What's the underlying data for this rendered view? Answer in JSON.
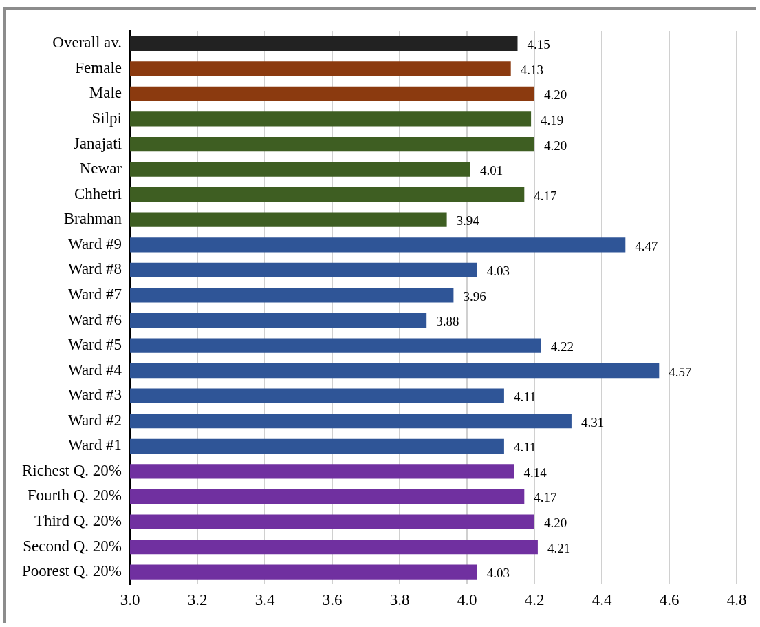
{
  "chart_data": {
    "type": "bar",
    "orientation": "horizontal",
    "categories": [
      "Overall av.",
      "Female",
      "Male",
      "Silpi",
      "Janajati",
      "Newar",
      "Chhetri",
      "Brahman",
      "Ward #9",
      "Ward #8",
      "Ward #7",
      "Ward #6",
      "Ward #5",
      "Ward #4",
      "Ward #3",
      "Ward #2",
      "Ward #1",
      "Richest Q. 20%",
      "Fourth Q. 20%",
      "Third Q. 20%",
      "Second Q. 20%",
      "Poorest Q. 20%"
    ],
    "values": [
      4.15,
      4.13,
      4.2,
      4.19,
      4.2,
      4.01,
      4.17,
      3.94,
      4.47,
      4.03,
      3.96,
      3.88,
      4.22,
      4.57,
      4.11,
      4.31,
      4.11,
      4.14,
      4.17,
      4.2,
      4.21,
      4.03
    ],
    "value_labels": [
      "4.15",
      "4.13",
      "4.20",
      "4.19",
      "4.20",
      "4.01",
      "4.17",
      "3.94",
      "4.47",
      "4.03",
      "3.96",
      "3.88",
      "4.22",
      "4.57",
      "4.11",
      "4.31",
      "4.11",
      "4.14",
      "4.17",
      "4.20",
      "4.21",
      "4.03"
    ],
    "colors": [
      "#222222",
      "#8b3a0f",
      "#8b3a0f",
      "#3e5e22",
      "#3e5e22",
      "#3e5e22",
      "#3e5e22",
      "#3e5e22",
      "#2f5597",
      "#2f5597",
      "#2f5597",
      "#2f5597",
      "#2f5597",
      "#2f5597",
      "#2f5597",
      "#2f5597",
      "#2f5597",
      "#7030a0",
      "#7030a0",
      "#7030a0",
      "#7030a0",
      "#7030a0"
    ],
    "xlim": [
      3.0,
      4.8
    ],
    "xticks": [
      {
        "value": 3.0,
        "label": "3.0"
      },
      {
        "value": 3.2,
        "label": "3.2"
      },
      {
        "value": 3.4,
        "label": "3.4"
      },
      {
        "value": 3.6,
        "label": "3.6"
      },
      {
        "value": 3.8,
        "label": "3.8"
      },
      {
        "value": 4.0,
        "label": "4.0"
      },
      {
        "value": 4.2,
        "label": "4.2"
      },
      {
        "value": 4.4,
        "label": "4.4"
      },
      {
        "value": 4.6,
        "label": "4.6"
      },
      {
        "value": 4.8,
        "label": "4.8"
      }
    ],
    "grid": "x",
    "legend": false
  }
}
